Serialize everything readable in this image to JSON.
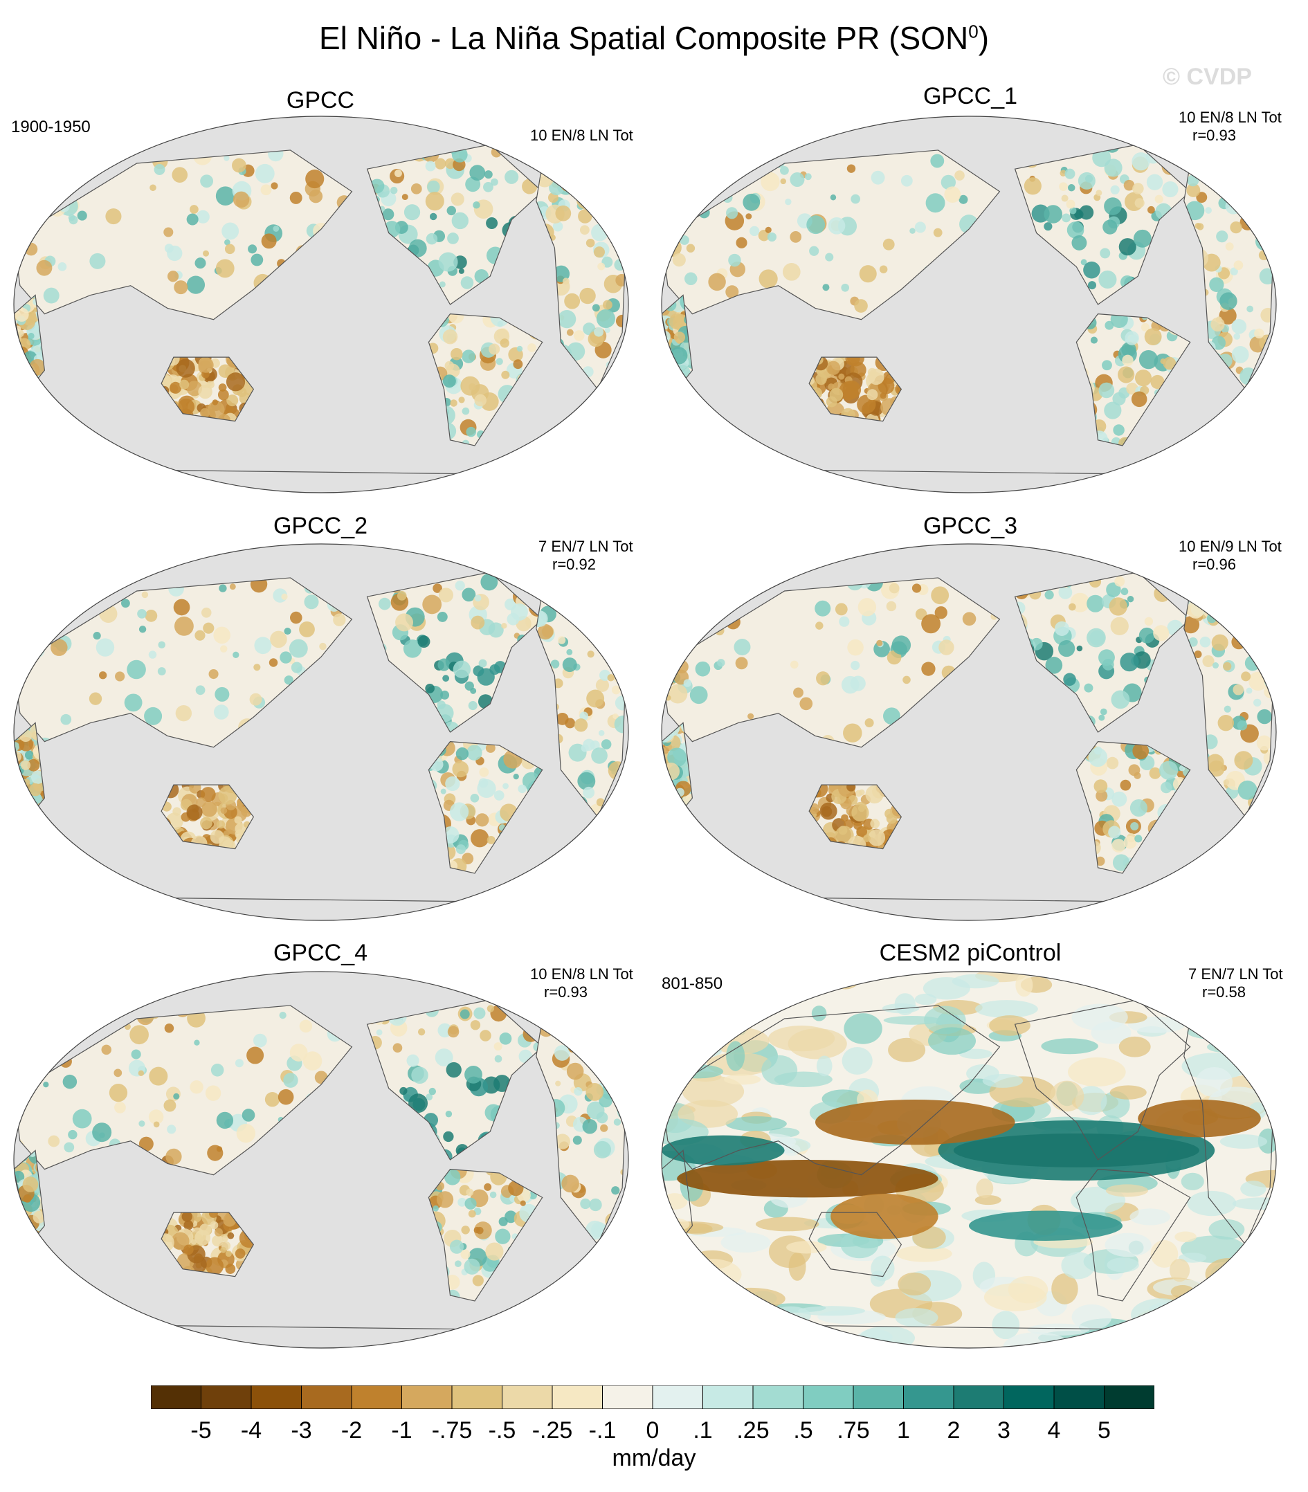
{
  "title": {
    "text": "El Niño - La Niña Spatial Composite PR (SON",
    "superscript": "0",
    "close": ")"
  },
  "watermark": "© CVDP",
  "panels": [
    {
      "title": "GPCC",
      "period": "1900-1950",
      "events": "10 EN/8 LN Tot",
      "corr": "",
      "style": "obs"
    },
    {
      "title": "GPCC_1",
      "period": "",
      "events": "10 EN/8 LN Tot",
      "corr": "r=0.93",
      "style": "obs"
    },
    {
      "title": "GPCC_2",
      "period": "",
      "events": "7 EN/7 LN Tot",
      "corr": "r=0.92",
      "style": "obs"
    },
    {
      "title": "GPCC_3",
      "period": "",
      "events": "10 EN/9 LN Tot",
      "corr": "r=0.96",
      "style": "obs"
    },
    {
      "title": "GPCC_4",
      "period": "",
      "events": "10 EN/8 LN Tot",
      "corr": "r=0.93",
      "style": "obs"
    },
    {
      "title": "CESM2 piControl",
      "period": "801-850",
      "events": "7 EN/7 LN Tot",
      "corr": "r=0.58",
      "style": "model"
    }
  ],
  "colorbar": {
    "labels": [
      "-5",
      "-4",
      "-3",
      "-2",
      "-1",
      "-.75",
      "-.5",
      "-.25",
      "-.1",
      "0",
      ".1",
      ".25",
      ".5",
      ".75",
      "1",
      "2",
      "3",
      "4",
      "5"
    ],
    "colors": [
      "#543005",
      "#6f400b",
      "#8c510a",
      "#a86a1f",
      "#bf812d",
      "#d5a85e",
      "#dfc27d",
      "#ecd9a8",
      "#f6e8c3",
      "#f5f2e8",
      "#e3f1ef",
      "#c7eae5",
      "#a3dcd2",
      "#80cdc1",
      "#5ab4a8",
      "#35978f",
      "#1d7c73",
      "#01665e",
      "#004f47",
      "#003c30"
    ],
    "units": "mm/day"
  },
  "map": {
    "ocean_color": "#e1e1e1",
    "coast_color": "#555555"
  }
}
